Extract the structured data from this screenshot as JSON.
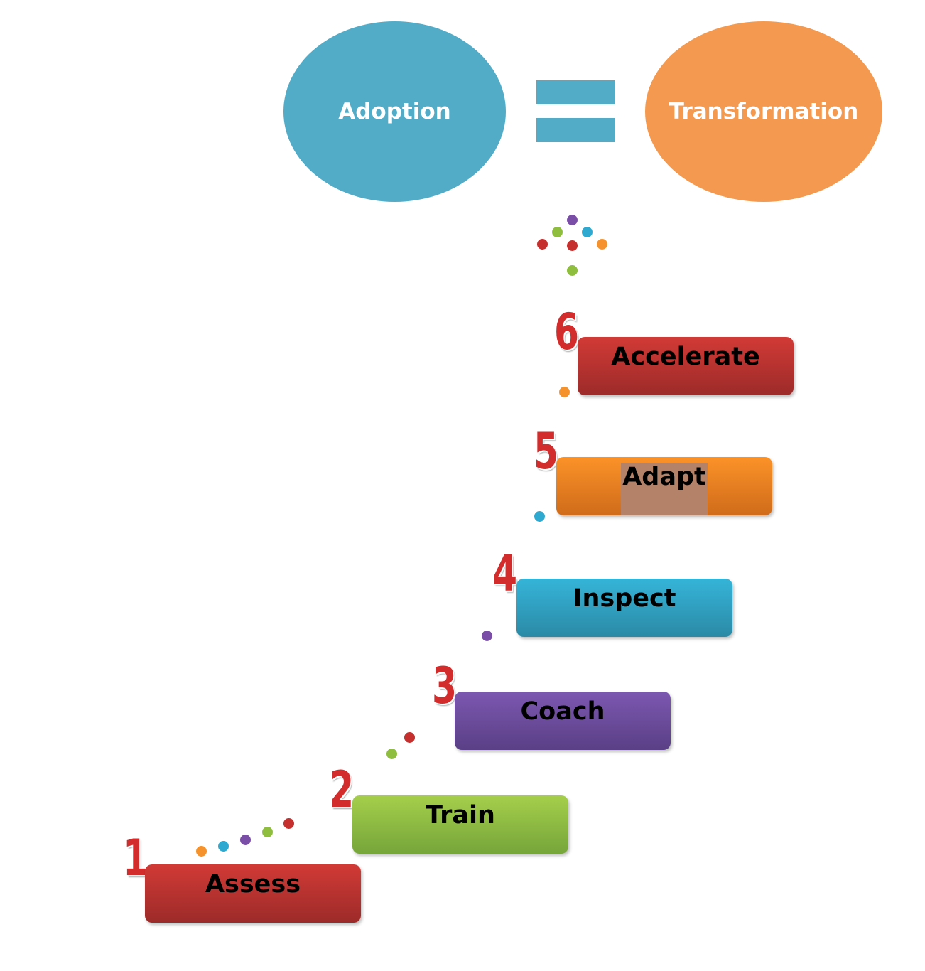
{
  "header": {
    "left_term": "Adoption",
    "right_term": "Transformation"
  },
  "steps": [
    {
      "number": "1",
      "label": "Assess"
    },
    {
      "number": "2",
      "label": "Train"
    },
    {
      "number": "3",
      "label": "Coach"
    },
    {
      "number": "4",
      "label": "Inspect"
    },
    {
      "number": "5",
      "label": "Adapt"
    },
    {
      "number": "6",
      "label": "Accelerate"
    }
  ],
  "colors": {
    "adoption": "#52abc7",
    "transformation": "#f39a50",
    "step_1": "#c4322f",
    "step_2": "#8fbe3e",
    "step_3": "#6b4a9e",
    "step_4": "#30a7cc",
    "step_5": "#f5892a",
    "step_6": "#c4322f",
    "step_number": "#d32c2c"
  }
}
